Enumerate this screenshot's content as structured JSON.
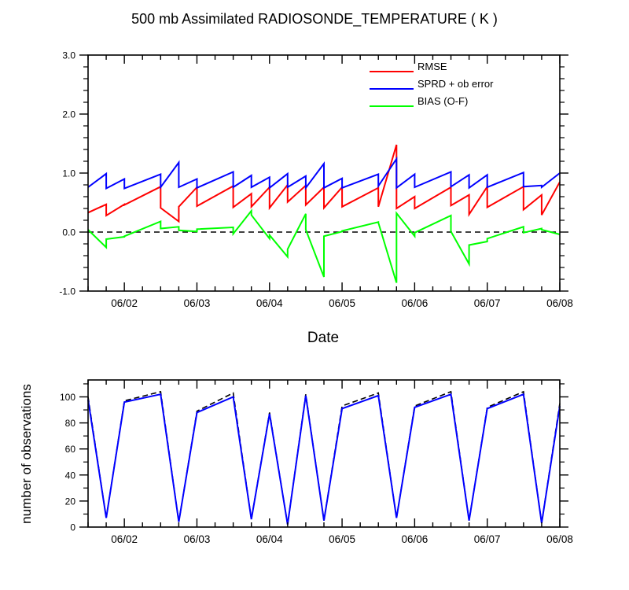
{
  "title": "500 mb Assimilated RADIOSONDE_TEMPERATURE ( K )",
  "colors": {
    "rmse": "#ff0000",
    "sprd": "#0000ff",
    "bias": "#00ff00",
    "total": "#000000",
    "used": "#0000ff"
  },
  "chart_data": [
    {
      "type": "line",
      "title": "500 mb Assimilated RADIOSONDE_TEMPERATURE ( K )",
      "xlabel": "Date",
      "ylabel": "",
      "x_tick_labels": [
        "06/02",
        "06/03",
        "06/04",
        "06/05",
        "06/06",
        "06/07",
        "06/08"
      ],
      "xlim": [
        "2023-06-01 12:00",
        "2023-06-08 00:00"
      ],
      "ylim": [
        -1.0,
        3.0
      ],
      "y_ticks": [
        -1.0,
        0.0,
        1.0,
        2.0,
        3.0
      ],
      "y_tick_labels": [
        "-1.0",
        "0.0",
        "1.0",
        "2.0",
        "3.0"
      ],
      "reference_line": 0.0,
      "grid": false,
      "legend_position": "top-right",
      "series": [
        {
          "name": "RMSE",
          "color": "#ff0000",
          "points": [
            [
              "2023-06-01 12:00",
              0.33
            ],
            [
              "2023-06-01 18:00",
              0.47
            ],
            [
              "2023-06-01 18:00",
              0.28
            ],
            [
              "2023-06-02 00:00",
              0.47
            ],
            [
              "2023-06-02 00:00",
              0.46
            ],
            [
              "2023-06-02 12:00",
              0.77
            ],
            [
              "2023-06-02 12:00",
              0.41
            ],
            [
              "2023-06-02 18:00",
              0.18
            ],
            [
              "2023-06-02 18:00",
              0.43
            ],
            [
              "2023-06-03 00:00",
              0.76
            ],
            [
              "2023-06-03 00:00",
              0.44
            ],
            [
              "2023-06-03 12:00",
              0.78
            ],
            [
              "2023-06-03 12:00",
              0.42
            ],
            [
              "2023-06-03 18:00",
              0.65
            ],
            [
              "2023-06-03 18:00",
              0.43
            ],
            [
              "2023-06-04 00:00",
              0.76
            ],
            [
              "2023-06-04 00:00",
              0.41
            ],
            [
              "2023-06-04 06:00",
              0.8
            ],
            [
              "2023-06-04 06:00",
              0.51
            ],
            [
              "2023-06-04 12:00",
              0.79
            ],
            [
              "2023-06-04 12:00",
              0.46
            ],
            [
              "2023-06-04 18:00",
              0.76
            ],
            [
              "2023-06-04 18:00",
              0.41
            ],
            [
              "2023-06-05 00:00",
              0.76
            ],
            [
              "2023-06-05 00:00",
              0.43
            ],
            [
              "2023-06-05 12:00",
              0.75
            ],
            [
              "2023-06-05 12:00",
              0.43
            ],
            [
              "2023-06-05 18:00",
              1.48
            ],
            [
              "2023-06-05 18:00",
              0.4
            ],
            [
              "2023-06-06 00:00",
              0.6
            ],
            [
              "2023-06-06 00:00",
              0.4
            ],
            [
              "2023-06-06 12:00",
              0.76
            ],
            [
              "2023-06-06 12:00",
              0.45
            ],
            [
              "2023-06-06 18:00",
              0.63
            ],
            [
              "2023-06-06 18:00",
              0.3
            ],
            [
              "2023-06-07 00:00",
              0.77
            ],
            [
              "2023-06-07 00:00",
              0.42
            ],
            [
              "2023-06-07 12:00",
              0.77
            ],
            [
              "2023-06-07 12:00",
              0.38
            ],
            [
              "2023-06-07 18:00",
              0.63
            ],
            [
              "2023-06-07 18:00",
              0.29
            ],
            [
              "2023-06-08 00:00",
              0.85
            ]
          ]
        },
        {
          "name": "SPRD + ob error",
          "color": "#0000ff",
          "points": [
            [
              "2023-06-01 12:00",
              0.76
            ],
            [
              "2023-06-01 18:00",
              0.99
            ],
            [
              "2023-06-01 18:00",
              0.74
            ],
            [
              "2023-06-02 00:00",
              0.9
            ],
            [
              "2023-06-02 00:00",
              0.74
            ],
            [
              "2023-06-02 12:00",
              0.98
            ],
            [
              "2023-06-02 12:00",
              0.76
            ],
            [
              "2023-06-02 18:00",
              1.18
            ],
            [
              "2023-06-02 18:00",
              0.76
            ],
            [
              "2023-06-03 00:00",
              0.9
            ],
            [
              "2023-06-03 00:00",
              0.75
            ],
            [
              "2023-06-03 12:00",
              1.02
            ],
            [
              "2023-06-03 12:00",
              0.76
            ],
            [
              "2023-06-03 18:00",
              0.96
            ],
            [
              "2023-06-03 18:00",
              0.76
            ],
            [
              "2023-06-04 00:00",
              0.93
            ],
            [
              "2023-06-04 00:00",
              0.75
            ],
            [
              "2023-06-04 06:00",
              0.99
            ],
            [
              "2023-06-04 06:00",
              0.76
            ],
            [
              "2023-06-04 12:00",
              0.95
            ],
            [
              "2023-06-04 12:00",
              0.75
            ],
            [
              "2023-06-04 18:00",
              1.16
            ],
            [
              "2023-06-04 18:00",
              0.75
            ],
            [
              "2023-06-05 00:00",
              0.91
            ],
            [
              "2023-06-05 00:00",
              0.75
            ],
            [
              "2023-06-05 12:00",
              0.98
            ],
            [
              "2023-06-05 12:00",
              0.78
            ],
            [
              "2023-06-05 18:00",
              1.24
            ],
            [
              "2023-06-05 18:00",
              0.75
            ],
            [
              "2023-06-06 00:00",
              0.98
            ],
            [
              "2023-06-06 00:00",
              0.76
            ],
            [
              "2023-06-06 12:00",
              1.02
            ],
            [
              "2023-06-06 12:00",
              0.77
            ],
            [
              "2023-06-06 18:00",
              0.97
            ],
            [
              "2023-06-06 18:00",
              0.75
            ],
            [
              "2023-06-07 00:00",
              0.97
            ],
            [
              "2023-06-07 00:00",
              0.76
            ],
            [
              "2023-06-07 12:00",
              1.01
            ],
            [
              "2023-06-07 12:00",
              0.77
            ],
            [
              "2023-06-07 18:00",
              0.79
            ],
            [
              "2023-06-07 18:00",
              0.76
            ],
            [
              "2023-06-08 00:00",
              1.0
            ]
          ]
        },
        {
          "name": "BIAS (O-F)",
          "color": "#00ff00",
          "points": [
            [
              "2023-06-01 12:00",
              0.04
            ],
            [
              "2023-06-01 18:00",
              -0.26
            ],
            [
              "2023-06-01 18:00",
              -0.12
            ],
            [
              "2023-06-02 00:00",
              -0.08
            ],
            [
              "2023-06-02 00:00",
              -0.07
            ],
            [
              "2023-06-02 12:00",
              0.18
            ],
            [
              "2023-06-02 12:00",
              0.06
            ],
            [
              "2023-06-02 18:00",
              0.09
            ],
            [
              "2023-06-02 18:00",
              0.03
            ],
            [
              "2023-06-03 00:00",
              0.01
            ],
            [
              "2023-06-03 00:00",
              0.05
            ],
            [
              "2023-06-03 12:00",
              0.08
            ],
            [
              "2023-06-03 12:00",
              -0.03
            ],
            [
              "2023-06-03 18:00",
              0.36
            ],
            [
              "2023-06-03 18:00",
              0.29
            ],
            [
              "2023-06-04 00:00",
              -0.11
            ],
            [
              "2023-06-04 00:00",
              -0.05
            ],
            [
              "2023-06-04 06:00",
              -0.42
            ],
            [
              "2023-06-04 06:00",
              -0.29
            ],
            [
              "2023-06-04 12:00",
              0.31
            ],
            [
              "2023-06-04 12:00",
              0.04
            ],
            [
              "2023-06-04 18:00",
              -0.76
            ],
            [
              "2023-06-04 18:00",
              -0.07
            ],
            [
              "2023-06-05 00:00",
              0.01
            ],
            [
              "2023-06-05 00:00",
              0.02
            ],
            [
              "2023-06-05 12:00",
              0.17
            ],
            [
              "2023-06-05 12:00",
              0.16
            ],
            [
              "2023-06-05 18:00",
              -0.86
            ],
            [
              "2023-06-05 18:00",
              0.32
            ],
            [
              "2023-06-06 00:00",
              -0.07
            ],
            [
              "2023-06-06 00:00",
              -0.01
            ],
            [
              "2023-06-06 12:00",
              0.28
            ],
            [
              "2023-06-06 12:00",
              0.01
            ],
            [
              "2023-06-06 18:00",
              -0.54
            ],
            [
              "2023-06-06 18:00",
              -0.22
            ],
            [
              "2023-06-07 00:00",
              -0.16
            ],
            [
              "2023-06-07 00:00",
              -0.11
            ],
            [
              "2023-06-07 12:00",
              0.09
            ],
            [
              "2023-06-07 12:00",
              -0.01
            ],
            [
              "2023-06-07 18:00",
              0.06
            ],
            [
              "2023-06-07 18:00",
              0.04
            ],
            [
              "2023-06-08 00:00",
              -0.04
            ]
          ]
        }
      ]
    },
    {
      "type": "line",
      "title": "",
      "xlabel": "",
      "ylabel": "number of observations",
      "x_tick_labels": [
        "06/02",
        "06/03",
        "06/04",
        "06/05",
        "06/06",
        "06/07",
        "06/08"
      ],
      "xlim": [
        "2023-06-01 12:00",
        "2023-06-08 00:00"
      ],
      "ylim": [
        0,
        113
      ],
      "y_ticks": [
        0,
        20,
        40,
        60,
        80,
        100
      ],
      "y_tick_labels": [
        "0",
        "20",
        "40",
        "60",
        "80",
        "100"
      ],
      "grid": false,
      "series": [
        {
          "color": "#000000",
          "dashed": true,
          "points": [
            [
              "2023-06-01 12:00",
              100
            ],
            [
              "2023-06-01 18:00",
              7
            ],
            [
              "2023-06-02 00:00",
              97
            ],
            [
              "2023-06-02 12:00",
              104
            ],
            [
              "2023-06-02 18:00",
              4
            ],
            [
              "2023-06-03 00:00",
              89
            ],
            [
              "2023-06-03 12:00",
              103
            ],
            [
              "2023-06-03 18:00",
              6
            ],
            [
              "2023-06-04 00:00",
              88
            ],
            [
              "2023-06-04 06:00",
              2
            ],
            [
              "2023-06-04 12:00",
              102
            ],
            [
              "2023-06-04 18:00",
              5
            ],
            [
              "2023-06-05 00:00",
              93
            ],
            [
              "2023-06-05 12:00",
              103
            ],
            [
              "2023-06-05 18:00",
              7
            ],
            [
              "2023-06-06 00:00",
              93
            ],
            [
              "2023-06-06 12:00",
              104
            ],
            [
              "2023-06-06 18:00",
              5
            ],
            [
              "2023-06-07 00:00",
              92
            ],
            [
              "2023-06-07 12:00",
              104
            ],
            [
              "2023-06-07 18:00",
              3
            ],
            [
              "2023-06-08 00:00",
              95
            ]
          ]
        },
        {
          "color": "#0000ff",
          "dashed": false,
          "points": [
            [
              "2023-06-01 12:00",
              98
            ],
            [
              "2023-06-01 18:00",
              7
            ],
            [
              "2023-06-02 00:00",
              96
            ],
            [
              "2023-06-02 12:00",
              102
            ],
            [
              "2023-06-02 18:00",
              4
            ],
            [
              "2023-06-03 00:00",
              88
            ],
            [
              "2023-06-03 12:00",
              100
            ],
            [
              "2023-06-03 18:00",
              6
            ],
            [
              "2023-06-04 00:00",
              87
            ],
            [
              "2023-06-04 06:00",
              2
            ],
            [
              "2023-06-04 12:00",
              101
            ],
            [
              "2023-06-04 18:00",
              5
            ],
            [
              "2023-06-05 00:00",
              91
            ],
            [
              "2023-06-05 12:00",
              101
            ],
            [
              "2023-06-05 18:00",
              7
            ],
            [
              "2023-06-06 00:00",
              92
            ],
            [
              "2023-06-06 12:00",
              102
            ],
            [
              "2023-06-06 18:00",
              5
            ],
            [
              "2023-06-07 00:00",
              91
            ],
            [
              "2023-06-07 12:00",
              102
            ],
            [
              "2023-06-07 18:00",
              3
            ],
            [
              "2023-06-08 00:00",
              93
            ]
          ]
        }
      ]
    }
  ]
}
